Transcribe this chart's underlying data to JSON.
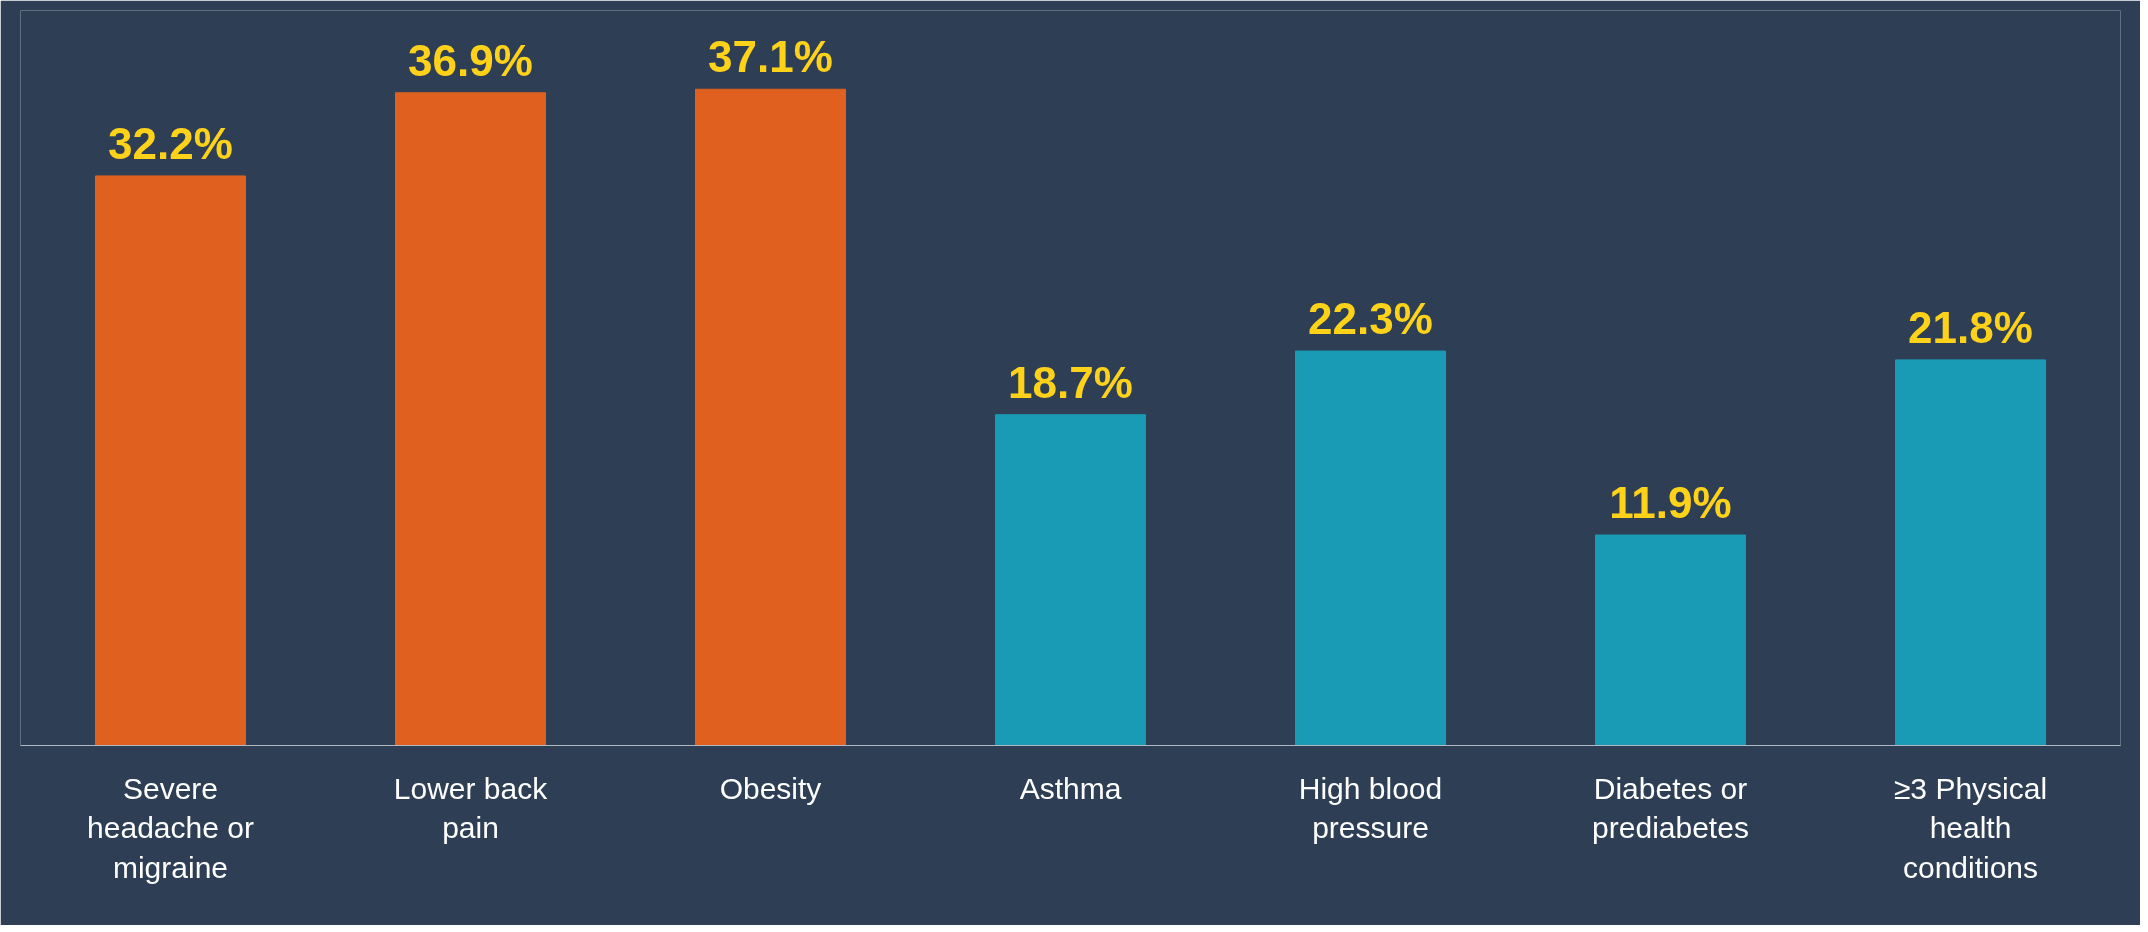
{
  "chart_data": {
    "type": "bar",
    "categories": [
      "Severe headache or migraine",
      "Lower back pain",
      "Obesity",
      "Asthma",
      "High blood pressure",
      "Diabetes or prediabetes",
      "≥3 Physical health conditions"
    ],
    "values": [
      32.2,
      36.9,
      37.1,
      18.7,
      22.3,
      11.9,
      21.8
    ],
    "value_labels": [
      "32.2%",
      "36.9%",
      "37.1%",
      "18.7%",
      "22.3%",
      "11.9%",
      "21.8%"
    ],
    "colors": [
      "#e0601f",
      "#e0601f",
      "#e0601f",
      "#1a9bb5",
      "#1a9bb5",
      "#1a9bb5",
      "#1a9bb5"
    ],
    "grid": false
  }
}
